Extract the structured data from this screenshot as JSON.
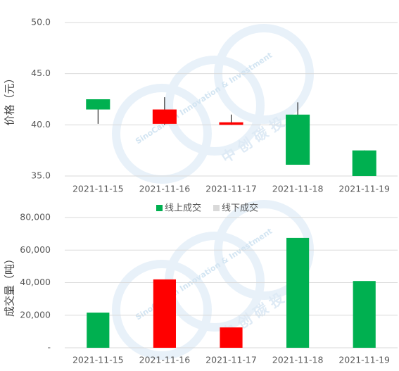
{
  "chart_data": [
    {
      "type": "candlestick",
      "y_label": "价格（元）",
      "categories": [
        "2021-11-15",
        "2021-11-16",
        "2021-11-17",
        "2021-11-18",
        "2021-11-19"
      ],
      "open": [
        42.5,
        40.1,
        40.0,
        41.0,
        37.5
      ],
      "high": [
        42.5,
        42.7,
        41.0,
        42.2,
        37.5
      ],
      "low": [
        40.1,
        40.0,
        40.0,
        36.1,
        35.0
      ],
      "close": [
        41.5,
        41.5,
        40.25,
        36.1,
        35.0
      ],
      "up_color": "#ff0000",
      "down_color": "#00b050",
      "ylim": [
        35,
        50
      ],
      "yticks": [
        {
          "value": 35,
          "label": "35.0"
        },
        {
          "value": 40,
          "label": "40.0"
        },
        {
          "value": 45,
          "label": "45.0"
        },
        {
          "value": 50,
          "label": "50.0"
        }
      ],
      "grid": true
    },
    {
      "type": "bar",
      "y_label": "成交量（吨）",
      "legend": [
        {
          "name": "线上成交",
          "color": "#00b050"
        },
        {
          "name": "线下成交",
          "color": "#d9d9d9"
        }
      ],
      "categories": [
        "2021-11-15",
        "2021-11-16",
        "2021-11-17",
        "2021-11-18",
        "2021-11-19"
      ],
      "values": [
        21600,
        42000,
        12500,
        67500,
        41000
      ],
      "colors": [
        "#00b050",
        "#ff0000",
        "#ff0000",
        "#00b050",
        "#00b050"
      ],
      "ylim": [
        0,
        80000
      ],
      "yticks": [
        {
          "value": 0,
          "label": "-"
        },
        {
          "value": 20000,
          "label": "20,000"
        },
        {
          "value": 40000,
          "label": "40,000"
        },
        {
          "value": 60000,
          "label": "60,000"
        },
        {
          "value": 80000,
          "label": "80,000"
        }
      ],
      "grid": true
    }
  ],
  "watermark": {
    "en": "SinoCarbon Innovation & Investment",
    "cn": "中 创 碳 投"
  }
}
